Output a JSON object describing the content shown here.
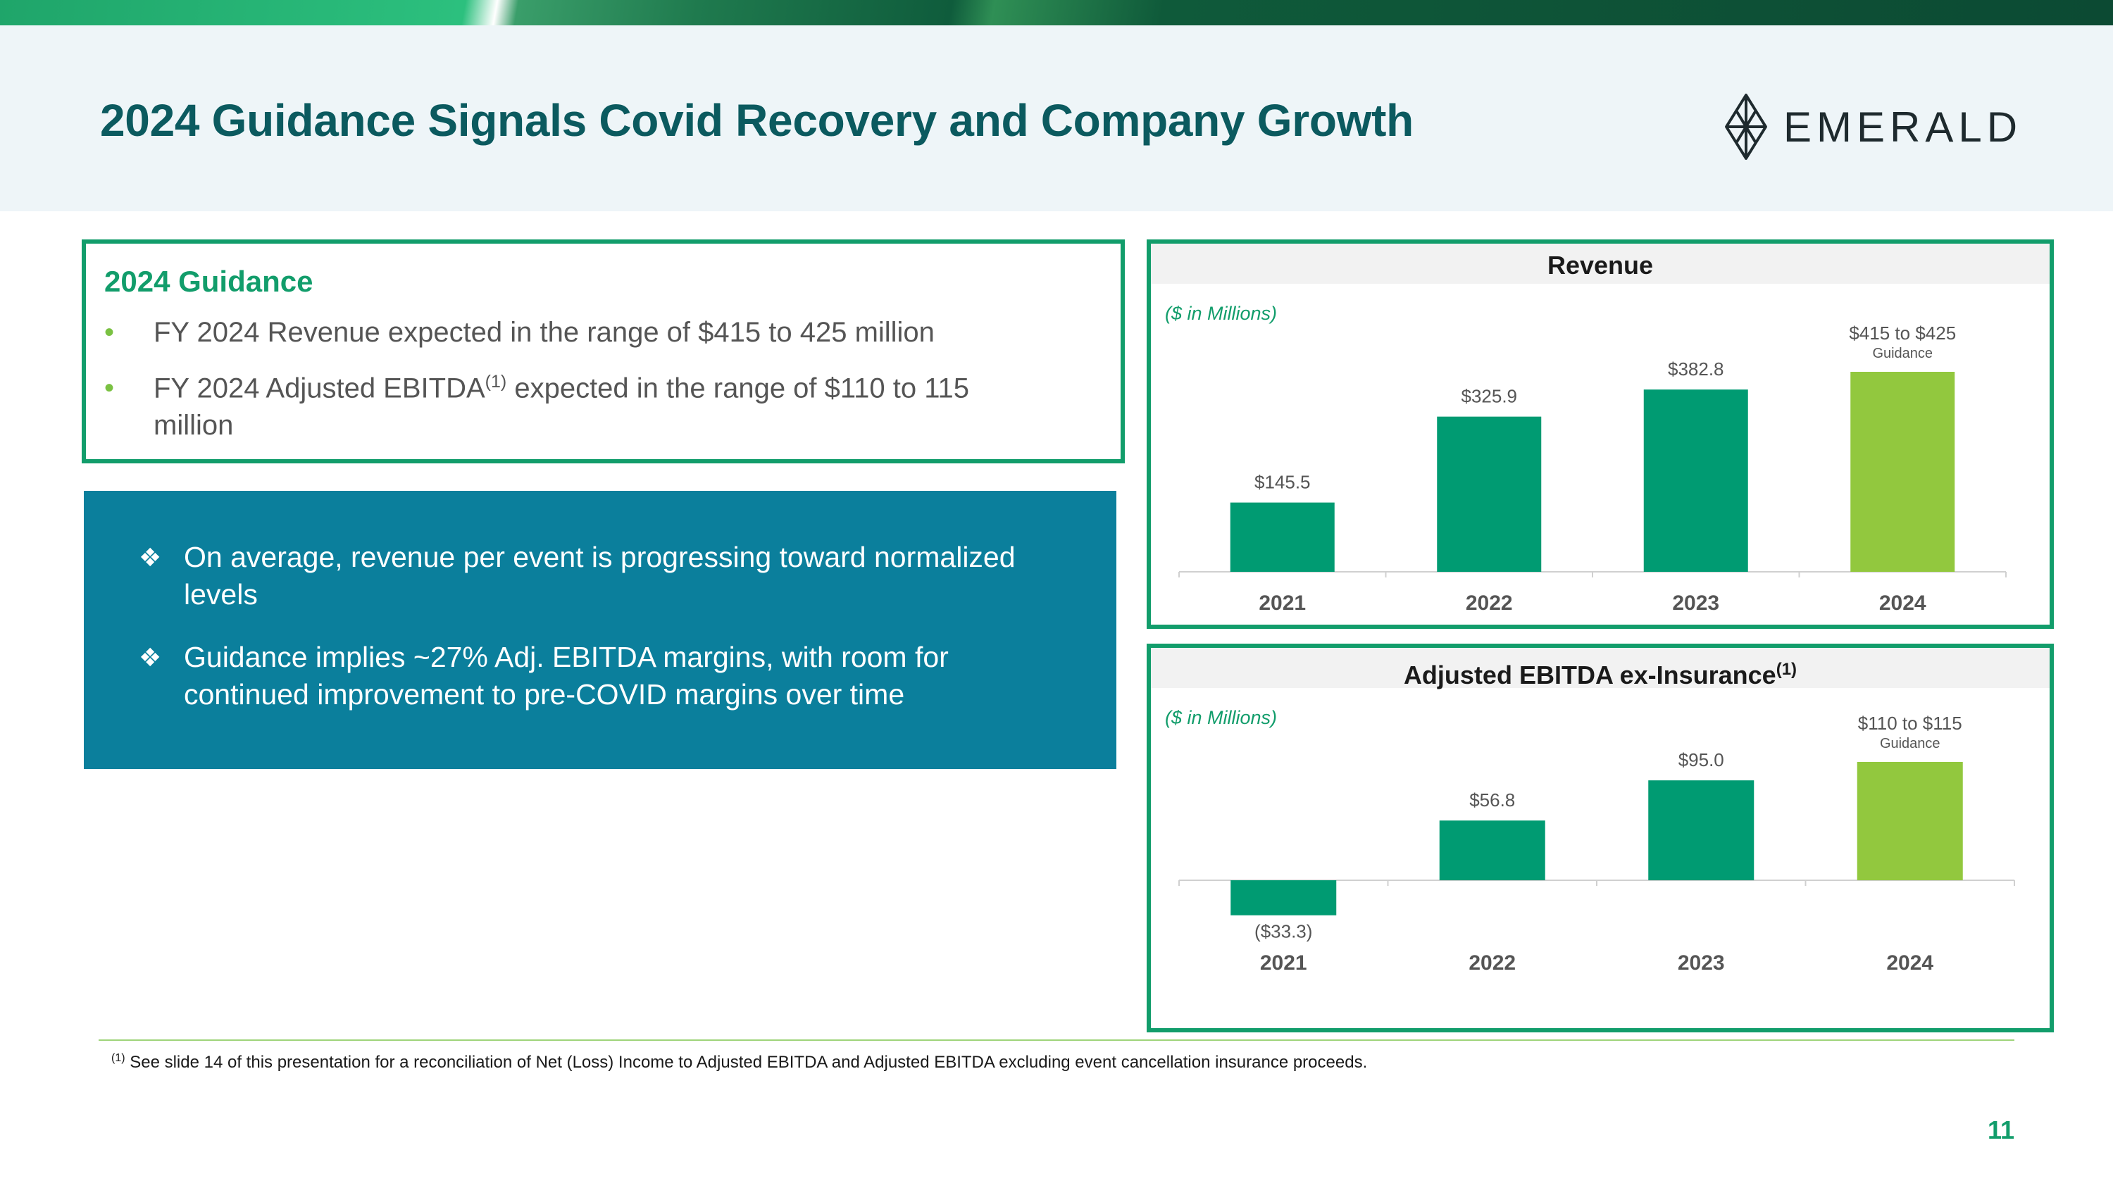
{
  "header": {
    "title": "2024 Guidance Signals Covid Recovery and Company Growth",
    "logo_text": "EMERALD"
  },
  "guidance": {
    "title": "2024 Guidance",
    "bullets": [
      {
        "text": "FY 2024 Revenue expected in the range of $415 to 425 million"
      },
      {
        "text_before": "FY 2024 Adjusted EBITDA",
        "sup": "(1)",
        "text_after": " expected in the range of $110 to 115",
        "text_line2": "million"
      }
    ]
  },
  "highlights": {
    "items": [
      {
        "line1": "On average, revenue per event is progressing toward normalized",
        "line2": "levels"
      },
      {
        "line1": "Guidance implies ~27% Adj. EBITDA margins, with room for",
        "line2": "continued improvement to pre-COVID margins over time"
      }
    ]
  },
  "chart_data": [
    {
      "type": "bar",
      "title": "Revenue",
      "units_note": "($ in Millions)",
      "categories": [
        "2021",
        "2022",
        "2023",
        "2024"
      ],
      "values": [
        145.5,
        325.9,
        382.8,
        420
      ],
      "data_labels": [
        "$145.5",
        "$325.9",
        "$382.8",
        "$415 to $425"
      ],
      "sublabels": [
        "",
        "",
        "",
        "Guidance"
      ],
      "bar_colors": [
        "#009b72",
        "#009b72",
        "#009b72",
        "#92c83e"
      ],
      "ylim": [
        0,
        420
      ]
    },
    {
      "type": "bar",
      "title": "Adjusted EBITDA ex-Insurance",
      "title_sup": "(1)",
      "units_note": "($ in Millions)",
      "categories": [
        "2021",
        "2022",
        "2023",
        "2024"
      ],
      "values": [
        -33.3,
        56.8,
        95.0,
        112.5
      ],
      "data_labels": [
        "($33.3)",
        "$56.8",
        "$95.0",
        "$110 to $115"
      ],
      "sublabels": [
        "",
        "",
        "",
        "Guidance"
      ],
      "bar_colors": [
        "#009b72",
        "#009b72",
        "#009b72",
        "#92c83e"
      ],
      "ylim": [
        -33.3,
        112.5
      ]
    }
  ],
  "footnote": {
    "sup": "(1)",
    "text": " See slide 14 of this presentation for a reconciliation of Net (Loss) Income to Adjusted EBITDA and Adjusted EBITDA excluding event cancellation insurance proceeds."
  },
  "page_number": "11"
}
